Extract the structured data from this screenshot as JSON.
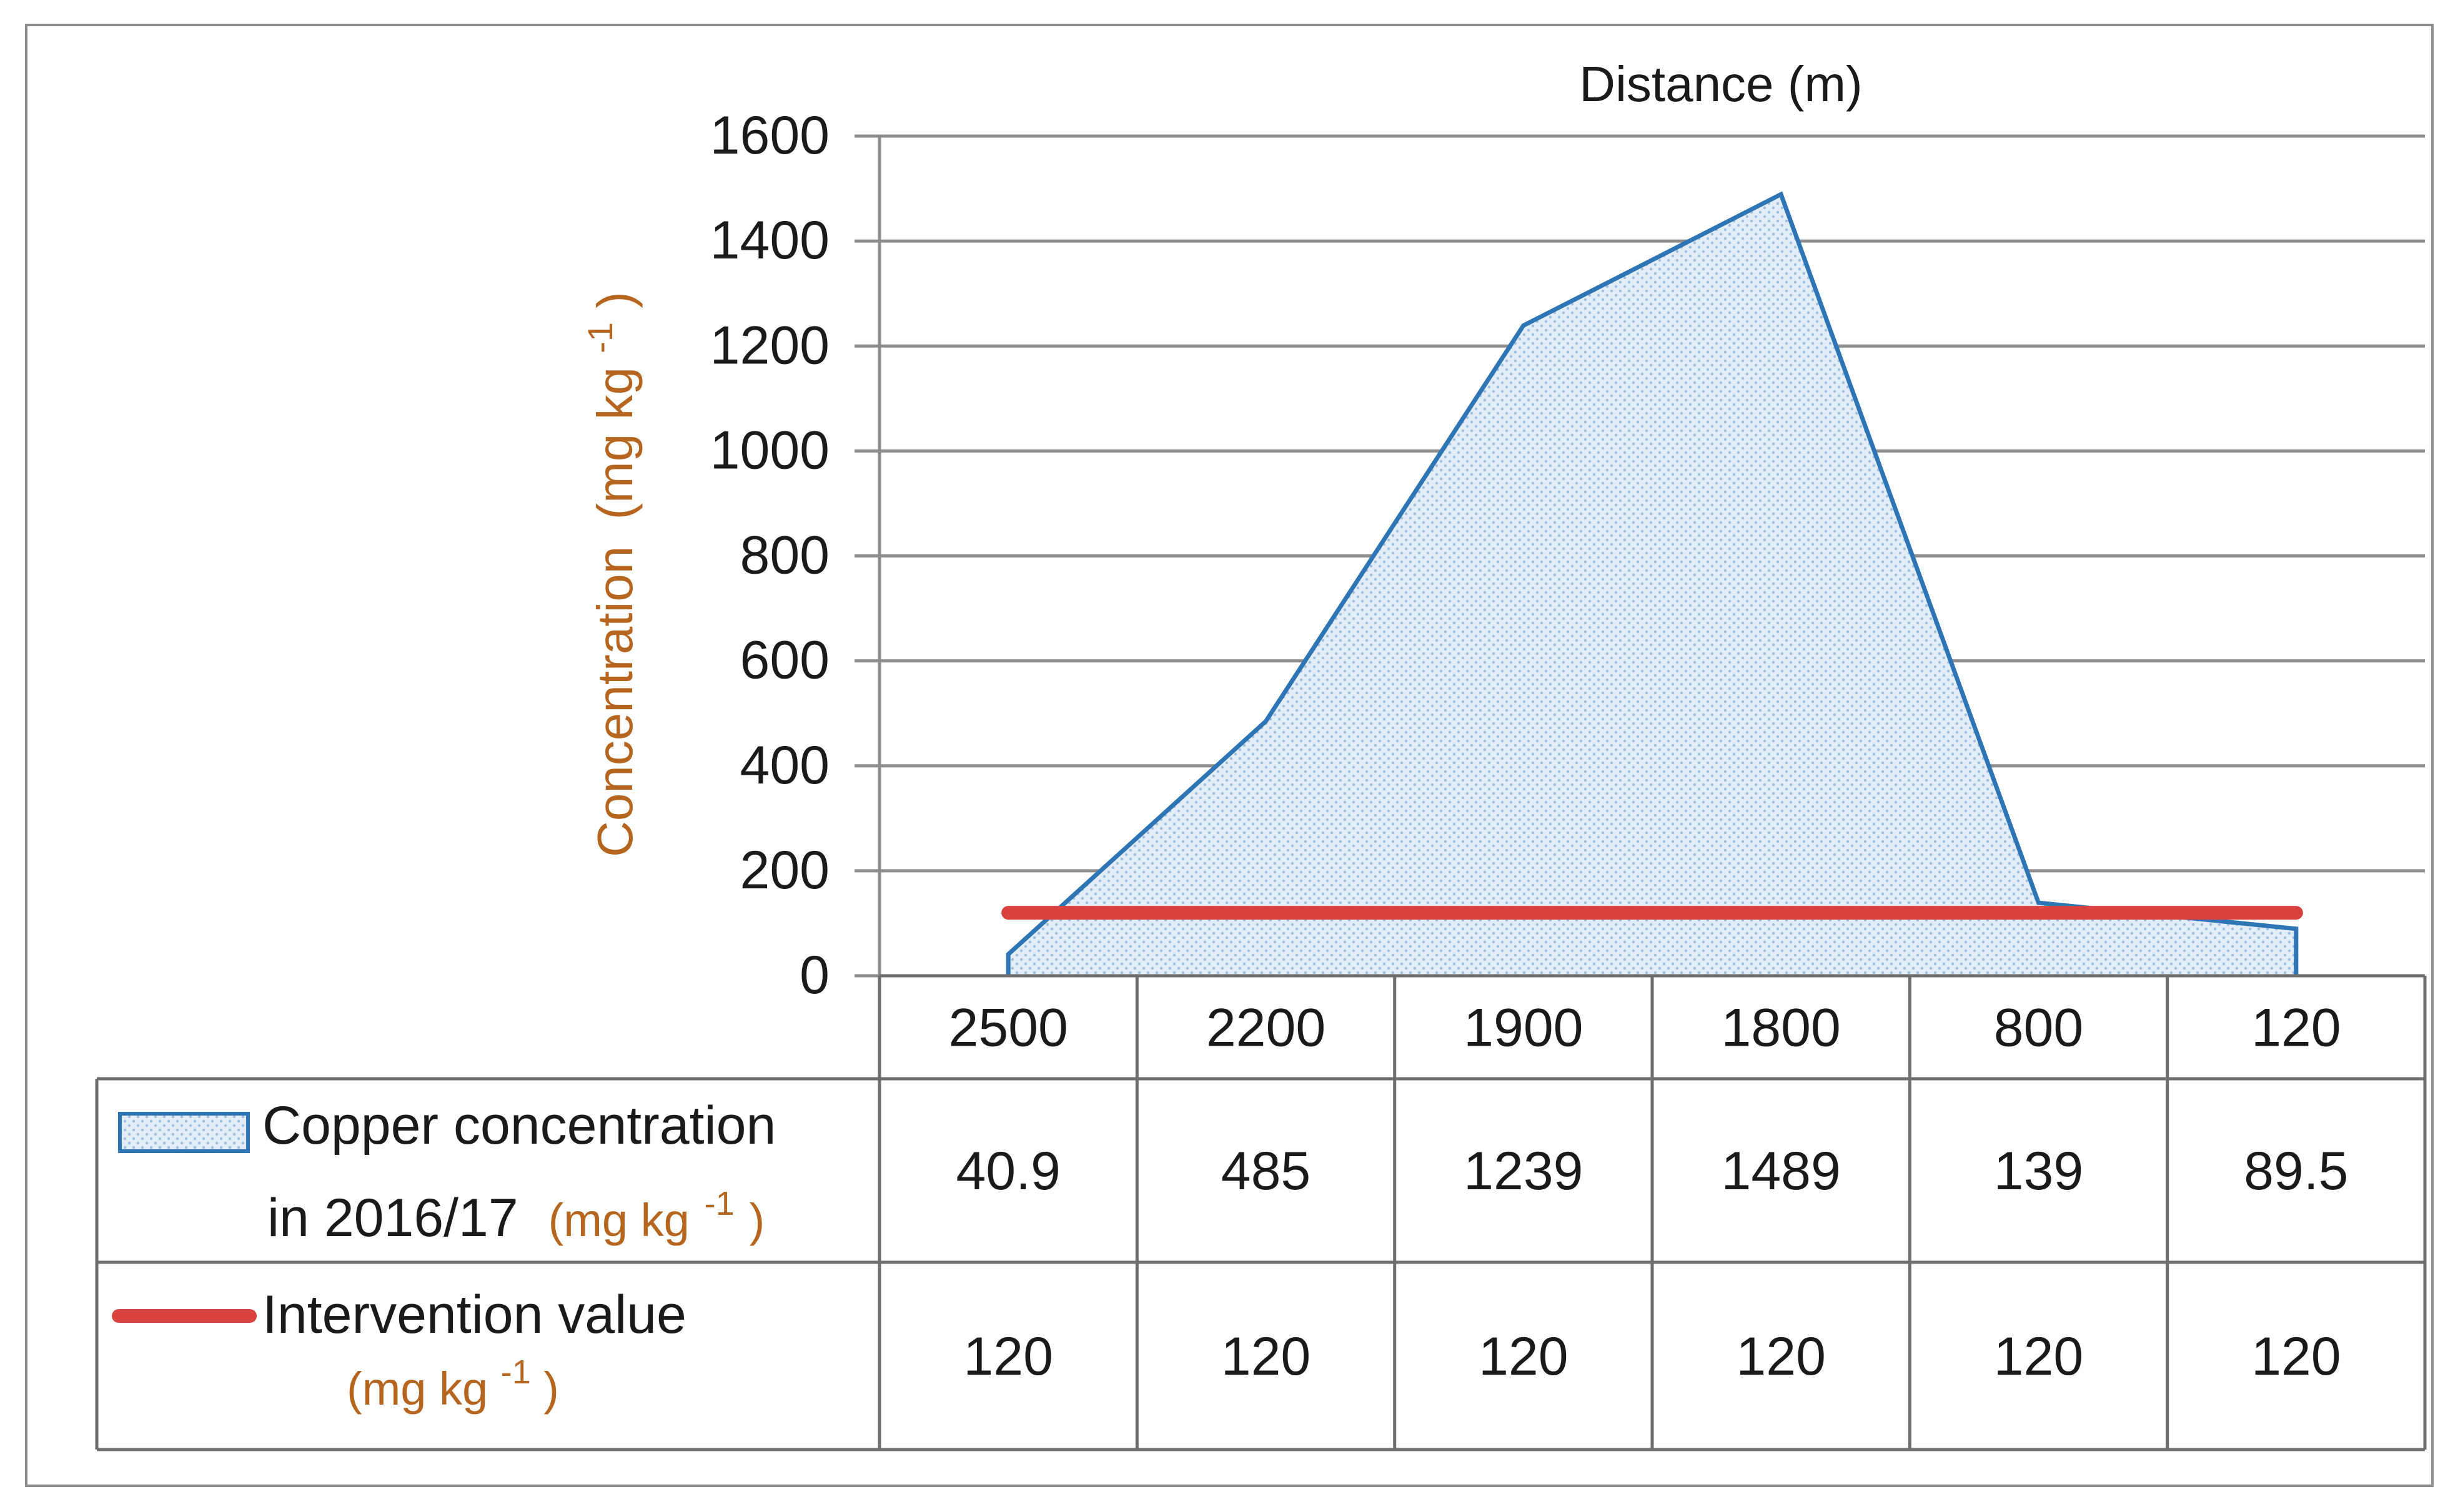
{
  "chart_data": {
    "type": "area",
    "title": "Distance (m)",
    "xlabel": "Distance (m)",
    "ylabel": "Concentration",
    "ylabel_unit": {
      "base": "(mg kg",
      "sup": "-1",
      "close": ")"
    },
    "ylim": [
      0,
      1600
    ],
    "yticks": [
      0,
      200,
      400,
      600,
      800,
      1000,
      1200,
      1400,
      1600
    ],
    "grid": true,
    "categories": [
      "2500",
      "2200",
      "1900",
      "1800",
      "800",
      "120"
    ],
    "series": [
      {
        "name": "Copper concentration in 2016/17",
        "legend_line1": "Copper concentration",
        "legend_line2": "in 2016/17",
        "unit": {
          "base": "(mg kg",
          "sup": "-1",
          "close": ")"
        },
        "type": "area",
        "color": "#2e75b6",
        "fill": "#dbe8f5",
        "values": [
          40.9,
          485,
          1239,
          1489,
          139,
          89.5
        ],
        "value_labels": [
          "40.9",
          "485",
          "1239",
          "1489",
          "139",
          "89.5"
        ]
      },
      {
        "name": "Intervention value",
        "legend_line1": "Intervention value",
        "unit": {
          "base": "(mg kg",
          "sup": "-1",
          "close": ")"
        },
        "type": "line",
        "color": "#d9423f",
        "values": [
          120,
          120,
          120,
          120,
          120,
          120
        ],
        "value_labels": [
          "120",
          "120",
          "120",
          "120",
          "120",
          "120"
        ]
      }
    ]
  }
}
